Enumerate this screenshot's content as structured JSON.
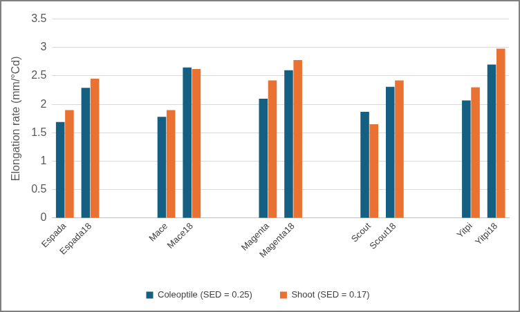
{
  "chart_data": {
    "type": "bar",
    "y_label": "Elongation rate (mm/°Cd)",
    "categories": [
      "Espada",
      "Espada18",
      null,
      null,
      "Mace",
      "Mace18",
      null,
      null,
      "Magenta",
      "Magenta18",
      null,
      null,
      "Scout",
      "Scout18",
      null,
      null,
      "Yitpi",
      "Yitpi18"
    ],
    "series": [
      {
        "name": "Coleoptile (SED = 0.25)",
        "color": "#156082",
        "values": [
          1.69,
          2.29,
          null,
          null,
          1.78,
          2.65,
          null,
          null,
          2.1,
          2.6,
          null,
          null,
          1.87,
          2.31,
          null,
          null,
          2.07,
          2.7
        ]
      },
      {
        "name": "Shoot (SED = 0.17)",
        "color": "#E97132",
        "values": [
          1.9,
          2.45,
          null,
          null,
          1.9,
          2.62,
          null,
          null,
          2.42,
          2.78,
          null,
          null,
          1.65,
          2.42,
          null,
          null,
          2.3,
          2.98
        ]
      }
    ],
    "ylim": [
      0,
      3.5
    ],
    "yticks": [
      0,
      0.5,
      1,
      1.5,
      2,
      2.5,
      3,
      3.5
    ],
    "grid": true,
    "legend": "bottom"
  }
}
